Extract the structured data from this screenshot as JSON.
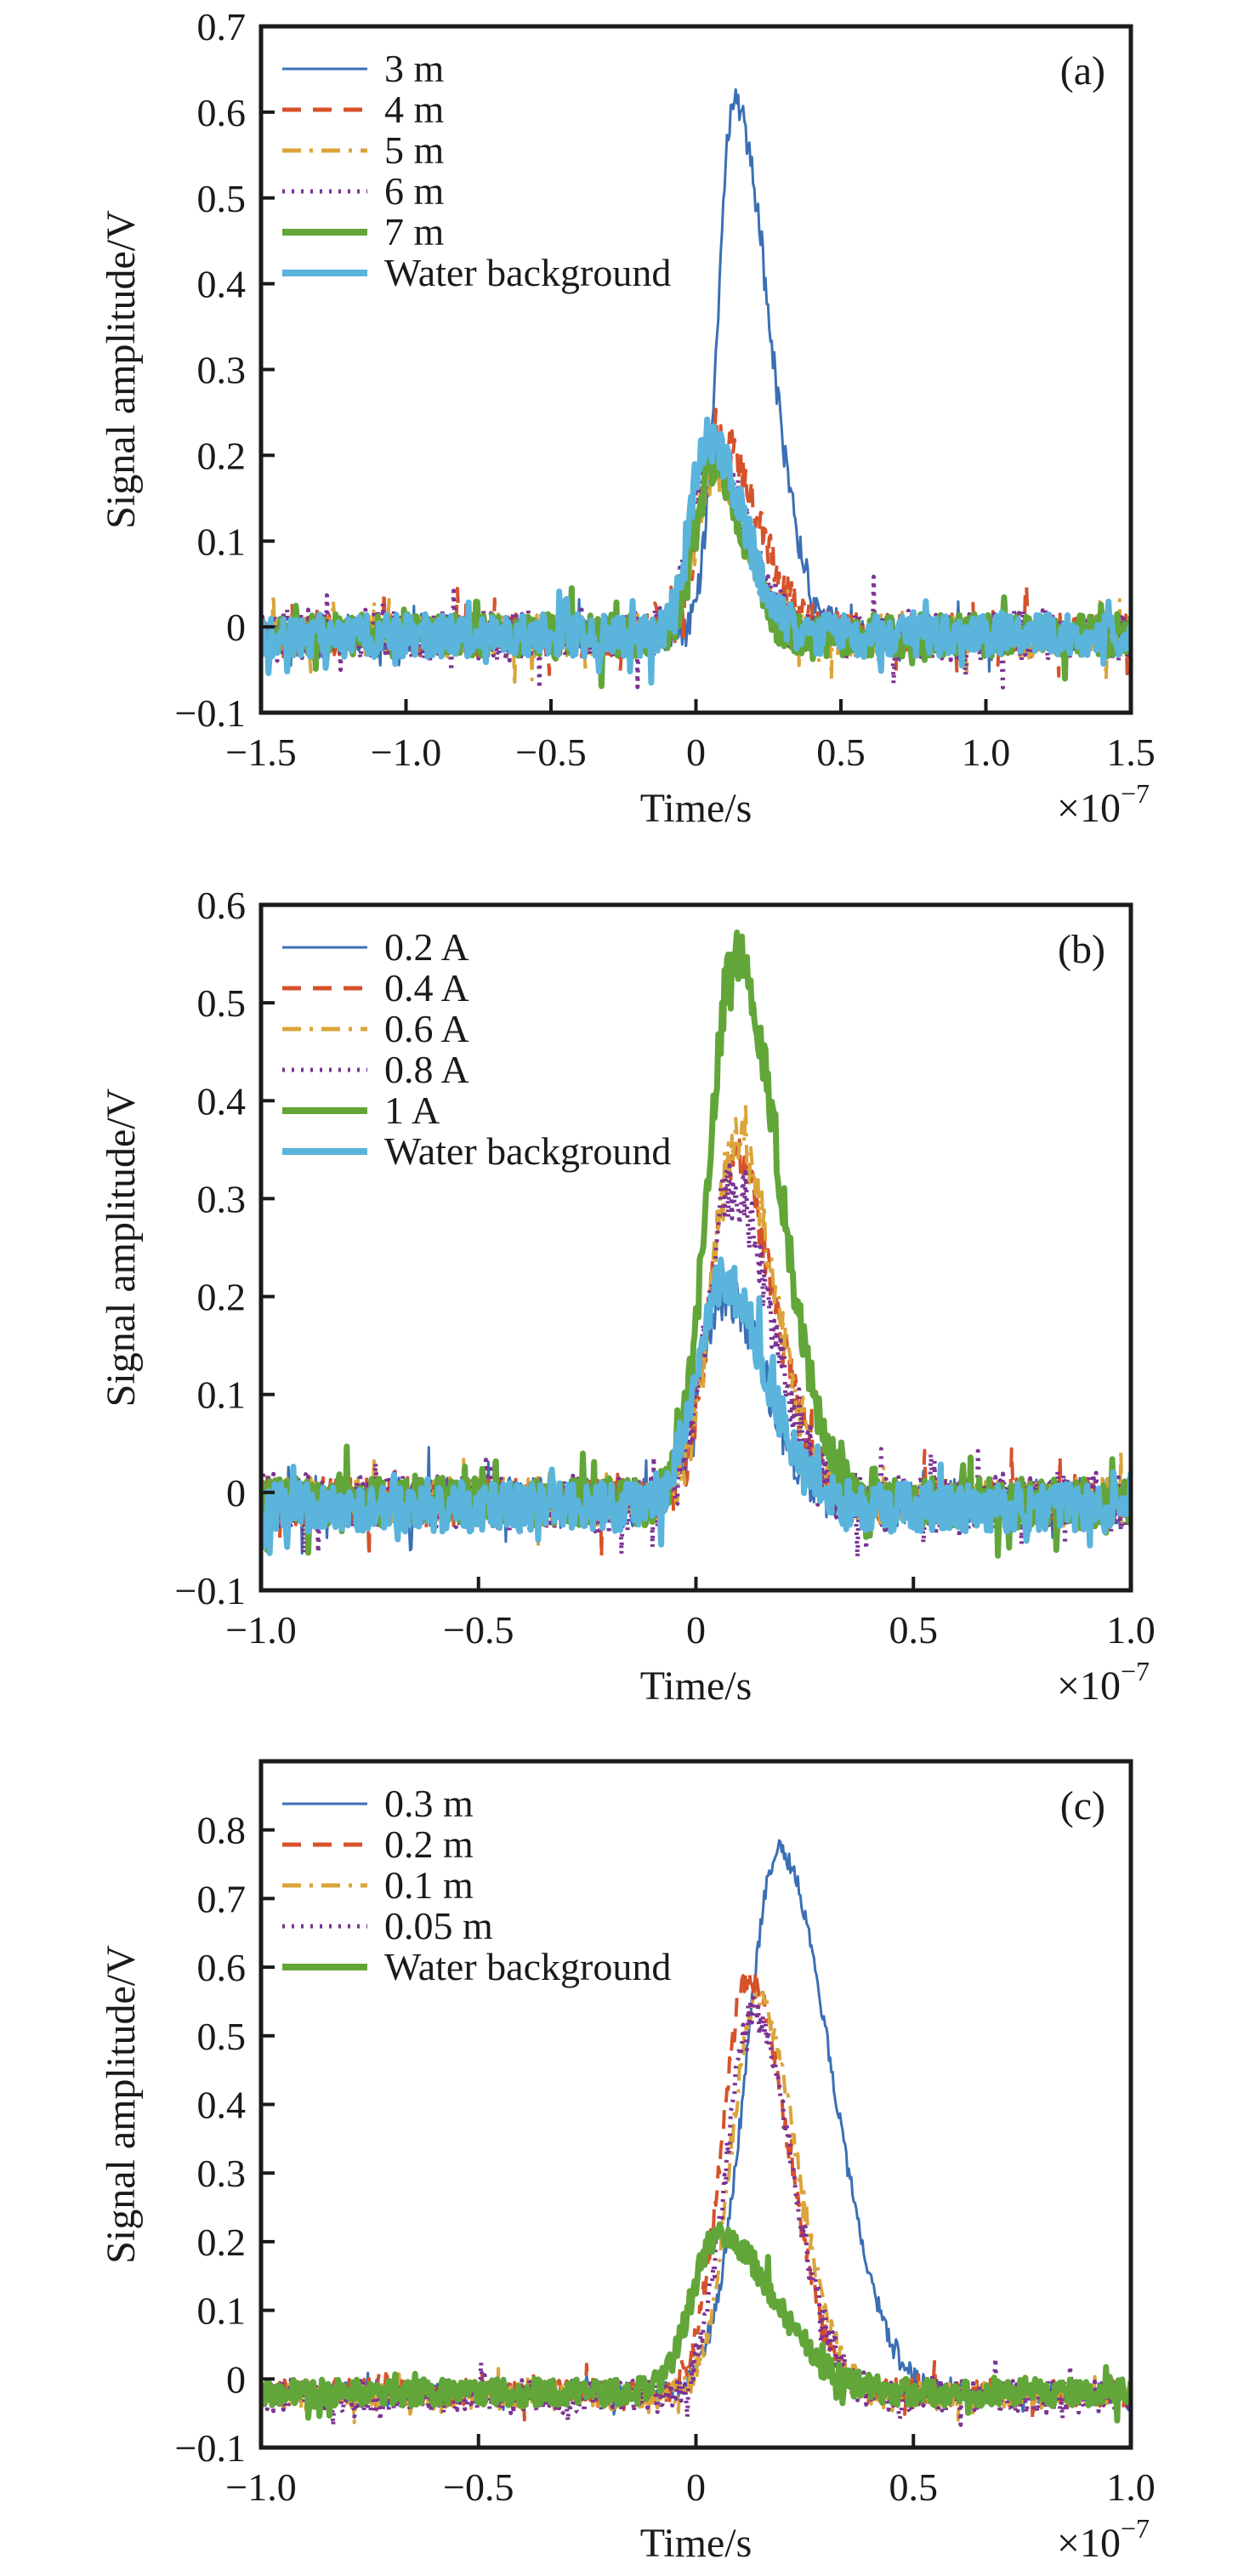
{
  "chart_data": [
    {
      "type": "line",
      "panel_label": "(a)",
      "title": "",
      "xlabel": "Time/s",
      "x_multiplier_label": "×10",
      "x_multiplier_exponent": "−7",
      "ylabel": "Signal amplitude/V",
      "xlim": [
        -1.5,
        1.5
      ],
      "ylim": [
        -0.1,
        0.7
      ],
      "xticks": [
        -1.5,
        -1.0,
        -0.5,
        0,
        0.5,
        1.0,
        1.5
      ],
      "xtick_labels": [
        "−1.5",
        "−1.0",
        "−0.5",
        "0",
        "0.5",
        "1.0",
        "1.5"
      ],
      "yticks": [
        -0.1,
        0,
        0.1,
        0.2,
        0.3,
        0.4,
        0.5,
        0.6,
        0.7
      ],
      "ytick_labels": [
        "−0.1",
        "0",
        "0.1",
        "0.2",
        "0.3",
        "0.4",
        "0.5",
        "0.6",
        "0.7"
      ],
      "grid": false,
      "legend_position": "top-left",
      "series": [
        {
          "name": "3 m",
          "color": "#3a6fb5",
          "style": "solid",
          "peak_time": 0.13,
          "peak_amplitude": 0.62,
          "rise_width": 0.055,
          "fall_width": 0.12,
          "baseline": -0.01,
          "noise": 0.02
        },
        {
          "name": "4 m",
          "color": "#d6522a",
          "style": "dashed",
          "peak_time": 0.07,
          "peak_amplitude": 0.23,
          "rise_width": 0.06,
          "fall_width": 0.14,
          "baseline": -0.01,
          "noise": 0.025
        },
        {
          "name": "5 m",
          "color": "#dba43a",
          "style": "dashdot",
          "peak_time": 0.06,
          "peak_amplitude": 0.19,
          "rise_width": 0.06,
          "fall_width": 0.11,
          "baseline": -0.01,
          "noise": 0.025
        },
        {
          "name": "6 m",
          "color": "#7b3393",
          "style": "dotted",
          "peak_time": 0.05,
          "peak_amplitude": 0.21,
          "rise_width": 0.065,
          "fall_width": 0.12,
          "baseline": -0.01,
          "noise": 0.03
        },
        {
          "name": "7 m",
          "color": "#62a63a",
          "style": "thick",
          "peak_time": 0.06,
          "peak_amplitude": 0.2,
          "rise_width": 0.06,
          "fall_width": 0.1,
          "baseline": -0.01,
          "noise": 0.025
        },
        {
          "name": "Water background",
          "color": "#5ab4dc",
          "style": "thick",
          "peak_time": 0.04,
          "peak_amplitude": 0.23,
          "rise_width": 0.06,
          "fall_width": 0.12,
          "baseline": -0.01,
          "noise": 0.025
        }
      ]
    },
    {
      "type": "line",
      "panel_label": "(b)",
      "title": "",
      "xlabel": "Time/s",
      "x_multiplier_label": "×10",
      "x_multiplier_exponent": "−7",
      "ylabel": "Signal amplitude/V",
      "xlim": [
        -1.0,
        1.0
      ],
      "ylim": [
        -0.1,
        0.6
      ],
      "xticks": [
        -1.0,
        -0.5,
        0,
        0.5,
        1.0
      ],
      "xtick_labels": [
        "−1.0",
        "−0.5",
        "0",
        "0.5",
        "1.0"
      ],
      "yticks": [
        -0.1,
        0,
        0.1,
        0.2,
        0.3,
        0.4,
        0.5,
        0.6
      ],
      "ytick_labels": [
        "−0.1",
        "0",
        "0.1",
        "0.2",
        "0.3",
        "0.4",
        "0.5",
        "0.6"
      ],
      "grid": false,
      "legend_position": "top-left",
      "series": [
        {
          "name": "0.2 A",
          "color": "#3a6fb5",
          "style": "solid",
          "peak_time": 0.07,
          "peak_amplitude": 0.21,
          "rise_width": 0.06,
          "fall_width": 0.09,
          "baseline": -0.01,
          "noise": 0.025
        },
        {
          "name": "0.4 A",
          "color": "#d6522a",
          "style": "dashed",
          "peak_time": 0.09,
          "peak_amplitude": 0.35,
          "rise_width": 0.055,
          "fall_width": 0.09,
          "baseline": -0.01,
          "noise": 0.025
        },
        {
          "name": "0.6 A",
          "color": "#dba43a",
          "style": "dashdot",
          "peak_time": 0.09,
          "peak_amplitude": 0.37,
          "rise_width": 0.055,
          "fall_width": 0.09,
          "baseline": -0.01,
          "noise": 0.025
        },
        {
          "name": "0.8 A",
          "color": "#7b3393",
          "style": "dotted",
          "peak_time": 0.08,
          "peak_amplitude": 0.32,
          "rise_width": 0.055,
          "fall_width": 0.09,
          "baseline": -0.01,
          "noise": 0.03
        },
        {
          "name": "1 A",
          "color": "#62a63a",
          "style": "thick",
          "peak_time": 0.09,
          "peak_amplitude": 0.56,
          "rise_width": 0.06,
          "fall_width": 0.1,
          "baseline": -0.01,
          "noise": 0.025
        },
        {
          "name": "Water background",
          "color": "#5ab4dc",
          "style": "thick",
          "peak_time": 0.06,
          "peak_amplitude": 0.23,
          "rise_width": 0.06,
          "fall_width": 0.1,
          "baseline": -0.015,
          "noise": 0.025
        }
      ]
    },
    {
      "type": "line",
      "panel_label": "(c)",
      "title": "",
      "xlabel": "Time/s",
      "x_multiplier_label": "×10",
      "x_multiplier_exponent": "−7",
      "ylabel": "Signal amplitude/V",
      "xlim": [
        -1.0,
        1.0
      ],
      "ylim": [
        -0.1,
        0.9
      ],
      "xticks": [
        -1.0,
        -0.5,
        0,
        0.5,
        1.0
      ],
      "xtick_labels": [
        "−1.0",
        "−0.5",
        "0",
        "0.5",
        "1.0"
      ],
      "yticks": [
        -0.1,
        0,
        0.1,
        0.2,
        0.3,
        0.4,
        0.5,
        0.6,
        0.7,
        0.8
      ],
      "ytick_labels": [
        "−0.1",
        "0",
        "0.1",
        "0.2",
        "0.3",
        "0.4",
        "0.5",
        "0.6",
        "0.7",
        "0.8"
      ],
      "grid": false,
      "legend_position": "top-left",
      "series": [
        {
          "name": "0.3 m",
          "color": "#3a6fb5",
          "style": "solid",
          "peak_time": 0.19,
          "peak_amplitude": 0.79,
          "rise_width": 0.075,
          "fall_width": 0.12,
          "baseline": -0.02,
          "noise": 0.015
        },
        {
          "name": "0.2 m",
          "color": "#d6522a",
          "style": "dashed",
          "peak_time": 0.12,
          "peak_amplitude": 0.61,
          "rise_width": 0.06,
          "fall_width": 0.09,
          "baseline": -0.02,
          "noise": 0.02
        },
        {
          "name": "0.1 m",
          "color": "#dba43a",
          "style": "dashdot",
          "peak_time": 0.14,
          "peak_amplitude": 0.58,
          "rise_width": 0.06,
          "fall_width": 0.09,
          "baseline": -0.025,
          "noise": 0.02
        },
        {
          "name": "0.05 m",
          "color": "#7b3393",
          "style": "dotted",
          "peak_time": 0.13,
          "peak_amplitude": 0.56,
          "rise_width": 0.06,
          "fall_width": 0.09,
          "baseline": -0.025,
          "noise": 0.025
        },
        {
          "name": "Water background",
          "color": "#62a63a",
          "style": "thick",
          "peak_time": 0.05,
          "peak_amplitude": 0.23,
          "rise_width": 0.06,
          "fall_width": 0.13,
          "baseline": -0.02,
          "noise": 0.02
        }
      ]
    }
  ]
}
